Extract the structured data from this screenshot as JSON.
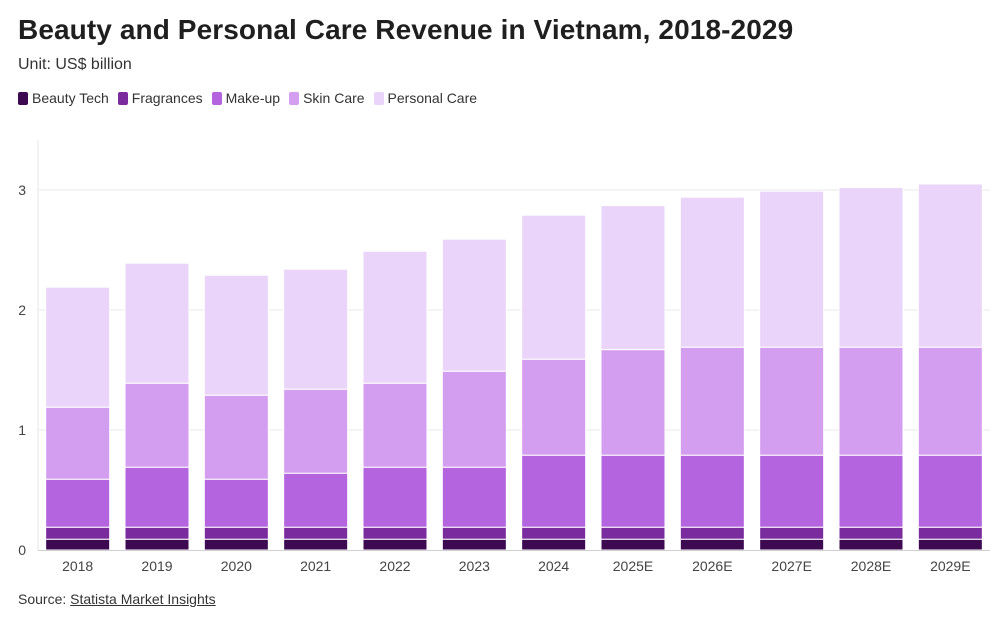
{
  "header": {
    "title": "Beauty and Personal Care Revenue in Vietnam, 2018-2029",
    "subtitle": "Unit: US$ billion"
  },
  "footer": {
    "source_label": "Source:",
    "source_link": "Statista Market Insights"
  },
  "chart_data": {
    "type": "bar",
    "stacked": true,
    "title": "Beauty and Personal Care Revenue in Vietnam, 2018-2029",
    "ylabel": "Unit: US$ billion",
    "xlabel": "",
    "ylim": [
      0,
      3.5
    ],
    "yticks": [
      0,
      1,
      2,
      3
    ],
    "grid": true,
    "legend_position": "top-left",
    "categories": [
      "2018",
      "2019",
      "2020",
      "2021",
      "2022",
      "2023",
      "2024",
      "2025E",
      "2026E",
      "2027E",
      "2028E",
      "2029E"
    ],
    "series": [
      {
        "name": "Beauty Tech",
        "color": "#3d0a52",
        "values": [
          0.09,
          0.09,
          0.09,
          0.09,
          0.09,
          0.09,
          0.09,
          0.09,
          0.09,
          0.09,
          0.09,
          0.09
        ]
      },
      {
        "name": "Fragrances",
        "color": "#7a2c9e",
        "values": [
          0.1,
          0.1,
          0.1,
          0.1,
          0.1,
          0.1,
          0.1,
          0.1,
          0.1,
          0.1,
          0.1,
          0.1
        ]
      },
      {
        "name": "Make-up",
        "color": "#b564e0",
        "values": [
          0.4,
          0.5,
          0.4,
          0.45,
          0.5,
          0.5,
          0.6,
          0.6,
          0.6,
          0.6,
          0.6,
          0.6
        ]
      },
      {
        "name": "Skin Care",
        "color": "#d49ef0",
        "values": [
          0.6,
          0.7,
          0.7,
          0.7,
          0.7,
          0.8,
          0.8,
          0.88,
          0.9,
          0.9,
          0.9,
          0.9
        ]
      },
      {
        "name": "Personal Care",
        "color": "#ebd4fa",
        "values": [
          1.0,
          1.0,
          1.0,
          1.0,
          1.1,
          1.1,
          1.2,
          1.2,
          1.25,
          1.3,
          1.33,
          1.36
        ]
      }
    ]
  }
}
